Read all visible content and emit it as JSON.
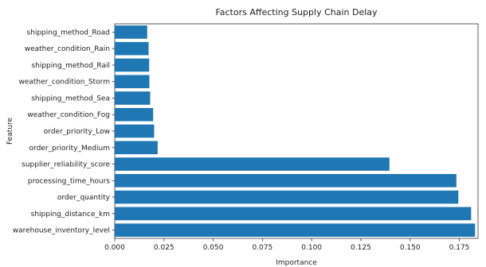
{
  "chart_data": {
    "type": "bar",
    "orientation": "horizontal",
    "title": "Factors Affecting Supply Chain Delay",
    "xlabel": "Importance",
    "ylabel": "Feature",
    "categories": [
      "shipping_method_Road",
      "weather_condition_Rain",
      "shipping_method_Rail",
      "weather_condition_Storm",
      "shipping_method_Sea",
      "weather_condition_Fog",
      "order_priority_Low",
      "order_priority_Medium",
      "supplier_reliability_score",
      "processing_time_hours",
      "order_quantity",
      "shipping_distance_km",
      "warehouse_inventory_level"
    ],
    "values": [
      0.0165,
      0.0172,
      0.0175,
      0.0176,
      0.018,
      0.0195,
      0.02,
      0.0218,
      0.1395,
      0.1735,
      0.1745,
      0.181,
      0.183
    ],
    "xlim": [
      0,
      0.1845
    ],
    "xticks": [
      0.0,
      0.025,
      0.05,
      0.075,
      0.1,
      0.125,
      0.15,
      0.175
    ],
    "xtick_labels": [
      "0.000",
      "0.025",
      "0.050",
      "0.075",
      "0.100",
      "0.125",
      "0.150",
      "0.175"
    ],
    "bar_color": "#1f77b4",
    "grid": false,
    "legend": "none"
  }
}
